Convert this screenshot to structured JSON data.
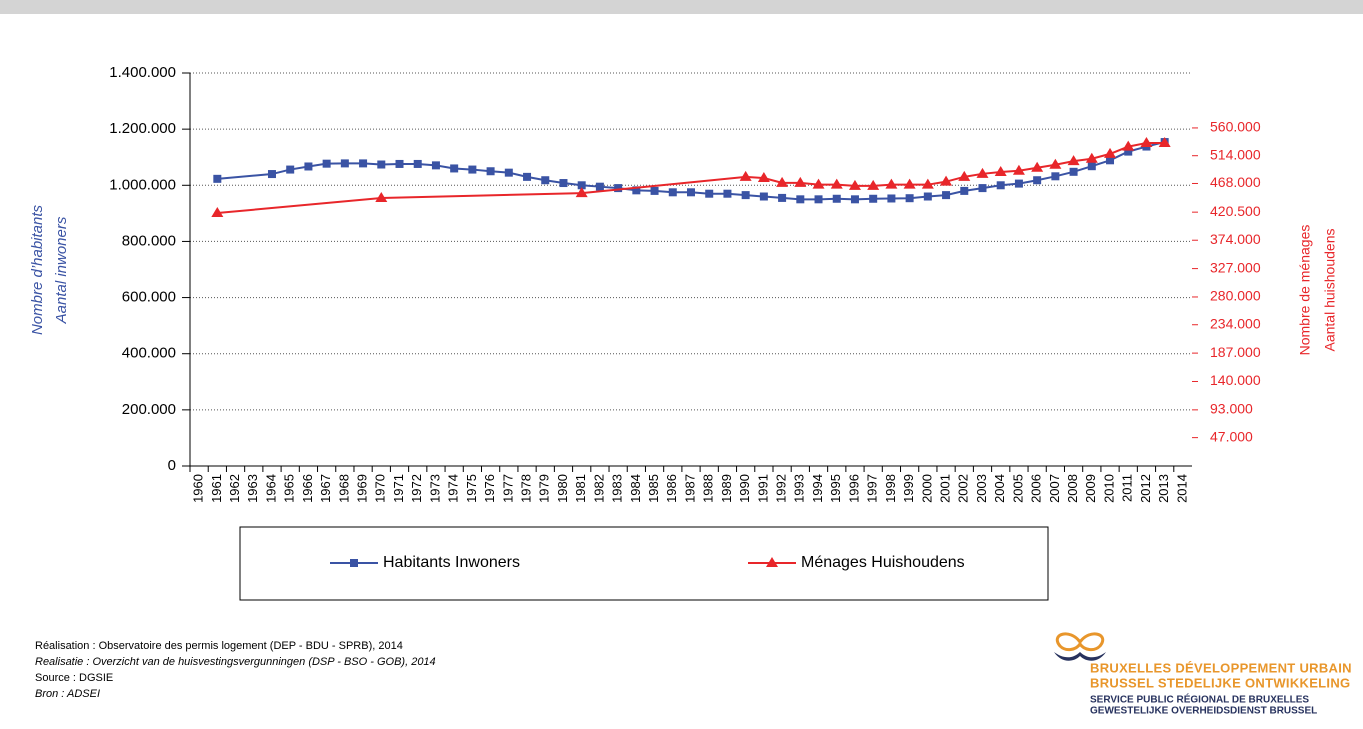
{
  "chart_data": {
    "type": "line",
    "ylabel": [
      "Nombre d’habitants",
      "Aantal inwoners"
    ],
    "y2label": [
      "Nombre de ménages",
      "Aantal huishoudens"
    ],
    "xlim": [
      1959.5,
      2014.5
    ],
    "xticks": [
      1960,
      1961,
      1962,
      1963,
      1964,
      1965,
      1966,
      1967,
      1968,
      1969,
      1970,
      1971,
      1972,
      1973,
      1974,
      1975,
      1976,
      1977,
      1978,
      1979,
      1980,
      1981,
      1982,
      1983,
      1984,
      1985,
      1986,
      1987,
      1988,
      1989,
      1990,
      1991,
      1992,
      1993,
      1994,
      1995,
      1996,
      1997,
      1998,
      1999,
      2000,
      2001,
      2002,
      2003,
      2004,
      2005,
      2006,
      2007,
      2008,
      2009,
      2010,
      2011,
      2012,
      2013,
      2014
    ],
    "ylim": [
      0,
      1400000
    ],
    "yticks": [
      0,
      {
        "value": 200000,
        "label": "200.000"
      },
      {
        "value": 400000,
        "label": "400.000"
      },
      {
        "value": 600000,
        "label": "600.000"
      },
      {
        "value": 800000,
        "label": "800.000"
      },
      {
        "value": 1000000,
        "label": "1.000.000"
      },
      {
        "value": 1200000,
        "label": "1.200.000"
      },
      {
        "value": 1400000,
        "label": "1.400.000"
      }
    ],
    "y2lim": [
      0,
      651000
    ],
    "y2ticks": [
      {
        "value": 47000,
        "label": "47.000"
      },
      {
        "value": 93000,
        "label": "93.000"
      },
      {
        "value": 140000,
        "label": "140.000"
      },
      {
        "value": 187000,
        "label": "187.000"
      },
      {
        "value": 234000,
        "label": "234.000"
      },
      {
        "value": 280000,
        "label": "280.000"
      },
      {
        "value": 327000,
        "label": "327.000"
      },
      {
        "value": 374000,
        "label": "374.000"
      },
      {
        "value": 420500,
        "label": "420.500"
      },
      {
        "value": 468000,
        "label": "468.000"
      },
      {
        "value": 514000,
        "label": "514.000"
      },
      {
        "value": 560000,
        "label": "560.000"
      }
    ],
    "grid": true,
    "legend": "bottom",
    "series": [
      {
        "name": "Habitants Inwoners",
        "color": "#3a53a4",
        "marker": "square",
        "x": [
          1961,
          1964,
          1965,
          1966,
          1967,
          1968,
          1969,
          1970,
          1971,
          1972,
          1973,
          1974,
          1975,
          1976,
          1977,
          1978,
          1979,
          1980,
          1981,
          1982,
          1983,
          1984,
          1985,
          1986,
          1987,
          1988,
          1989,
          1990,
          1991,
          1992,
          1993,
          1994,
          1995,
          1996,
          1997,
          1998,
          1999,
          2000,
          2001,
          2002,
          2003,
          2004,
          2005,
          2006,
          2007,
          2008,
          2009,
          2010,
          2011,
          2012,
          2013
        ],
        "values": [
          1023000,
          1040000,
          1056000,
          1067000,
          1077000,
          1078000,
          1078000,
          1074000,
          1076000,
          1076000,
          1071000,
          1060000,
          1056000,
          1050000,
          1045000,
          1030000,
          1018000,
          1008000,
          1000000,
          995000,
          990000,
          982000,
          980000,
          975000,
          975000,
          970000,
          970000,
          965000,
          960000,
          955000,
          950000,
          950000,
          952000,
          950000,
          952000,
          953000,
          954000,
          960000,
          965000,
          980000,
          990000,
          1000000,
          1006000,
          1018000,
          1032000,
          1048000,
          1068000,
          1089000,
          1120000,
          1138000,
          1154000
        ]
      },
      {
        "name": "Ménages Huishoudens",
        "color": "#e8262a",
        "marker": "triangle",
        "axis": "y2",
        "x": [
          1961,
          1970,
          1981,
          1990,
          1991,
          1992,
          1993,
          1994,
          1995,
          1996,
          1997,
          1998,
          1999,
          2000,
          2001,
          2002,
          2003,
          2004,
          2005,
          2006,
          2007,
          2008,
          2009,
          2010,
          2011,
          2012,
          2013
        ],
        "values": [
          419000,
          444000,
          452000,
          479000,
          477000,
          469000,
          469000,
          466000,
          466000,
          464000,
          464000,
          466000,
          466000,
          466000,
          471000,
          479000,
          484000,
          487000,
          489000,
          494000,
          499000,
          505000,
          509000,
          517000,
          529000,
          535000,
          535000
        ]
      }
    ]
  },
  "footer": [
    "Réalisation : Observatoire des permis logement (DEP - BDU - SPRB), 2014",
    "Realisatie : Overzicht van de huisvestingsvergunningen (DSP - BSO - GOB), 2014",
    "Source : DGSIE",
    "Bron : ADSEI"
  ],
  "logo": [
    "BRUXELLES DÉVELOPPEMENT URBAIN",
    "BRUSSEL STEDELIJKE ONTWIKKELING",
    "SERVICE PUBLIC RÉGIONAL DE BRUXELLES",
    "GEWESTELIJKE OVERHEIDSDIENST BRUSSEL"
  ]
}
